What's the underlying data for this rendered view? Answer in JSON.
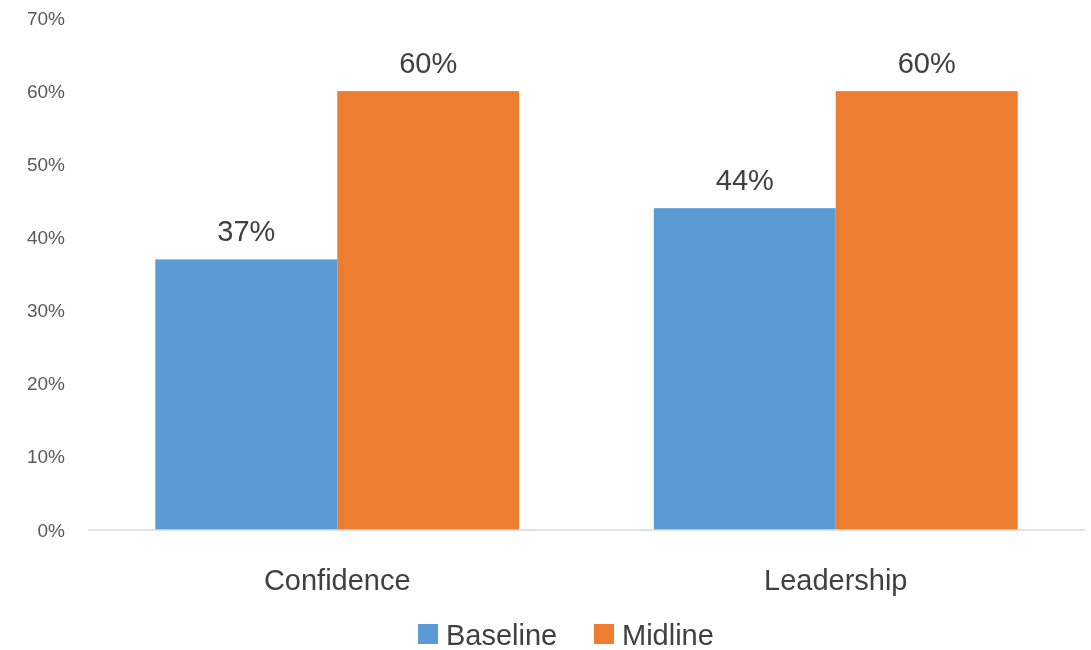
{
  "chart_data": {
    "type": "bar",
    "categories": [
      "Confidence",
      "Leadership"
    ],
    "series": [
      {
        "name": "Baseline",
        "color": "#5b9bd5",
        "values": [
          37,
          44
        ],
        "value_labels": [
          "37%",
          "44%"
        ]
      },
      {
        "name": "Midline",
        "color": "#ed7d31",
        "values": [
          60,
          60
        ],
        "value_labels": [
          "60%",
          "60%"
        ]
      }
    ],
    "ylim": [
      0,
      70
    ],
    "yticks": [
      {
        "value": 0,
        "label": "0%"
      },
      {
        "value": 10,
        "label": "10%"
      },
      {
        "value": 20,
        "label": "20%"
      },
      {
        "value": 30,
        "label": "30%"
      },
      {
        "value": 40,
        "label": "40%"
      },
      {
        "value": 50,
        "label": "50%"
      },
      {
        "value": 60,
        "label": "60%"
      },
      {
        "value": 70,
        "label": "70%"
      }
    ],
    "grid": false,
    "legend": "bottom"
  }
}
